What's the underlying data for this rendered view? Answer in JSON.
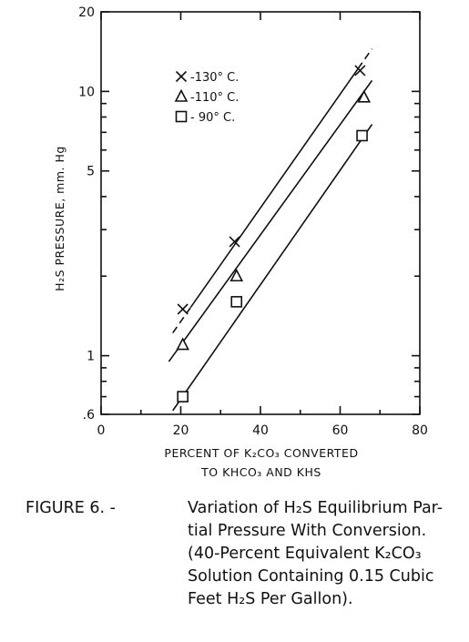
{
  "chart_data": {
    "type": "scatter",
    "x_scale": "linear",
    "y_scale": "log",
    "xlim": [
      0,
      80
    ],
    "ylim": [
      0.6,
      20
    ],
    "xlabel_lines": [
      "PERCENT OF K₂CO₃ CONVERTED",
      "TO KHCO₃ AND KHS"
    ],
    "ylabel": "H₂S PRESSURE, mm. Hg",
    "x_ticks": [
      {
        "value": 0,
        "label": "0"
      },
      {
        "value": 20,
        "label": "20"
      },
      {
        "value": 40,
        "label": "40"
      },
      {
        "value": 60,
        "label": "60"
      },
      {
        "value": 80,
        "label": "80"
      }
    ],
    "y_ticks": [
      {
        "value": 0.6,
        "label": ".6"
      },
      {
        "value": 1,
        "label": "1"
      },
      {
        "value": 5,
        "label": "5"
      },
      {
        "value": 10,
        "label": "10"
      },
      {
        "value": 20,
        "label": "20"
      }
    ],
    "y_minor_ticks": [
      0.7,
      0.8,
      0.9,
      2,
      3,
      4,
      6,
      7,
      8,
      9
    ],
    "x_minor_ticks": [
      10,
      30,
      50,
      70
    ],
    "legend_position": "top-left",
    "series": [
      {
        "name": "-130° C.",
        "marker": "x",
        "points": [
          [
            20.5,
            1.5
          ],
          [
            33.5,
            2.7
          ],
          [
            65,
            12
          ]
        ],
        "fit_line": [
          [
            18,
            1.22
          ],
          [
            68,
            14.5
          ]
        ],
        "dashed_ends": true
      },
      {
        "name": "-110° C.",
        "marker": "triangle",
        "points": [
          [
            20.5,
            1.1
          ],
          [
            34,
            2.0
          ],
          [
            66,
            9.5
          ]
        ],
        "fit_line": [
          [
            17,
            0.95
          ],
          [
            68,
            11.0
          ]
        ],
        "dashed_ends": false
      },
      {
        "name": "- 90° C.",
        "marker": "square",
        "points": [
          [
            20.5,
            0.7
          ],
          [
            34,
            1.6
          ],
          [
            65.5,
            6.8
          ]
        ],
        "fit_line": [
          [
            18,
            0.62
          ],
          [
            68,
            7.5
          ]
        ],
        "dashed_ends": false
      }
    ]
  },
  "caption": {
    "figure_number": "FIGURE 6. -",
    "lines": [
      "Variation of H₂S Equilibrium Par-",
      "tial Pressure With Conversion.",
      "(40-Percent Equivalent K₂CO₃",
      "Solution Containing 0.15 Cubic",
      "Feet H₂S Per Gallon)."
    ]
  }
}
